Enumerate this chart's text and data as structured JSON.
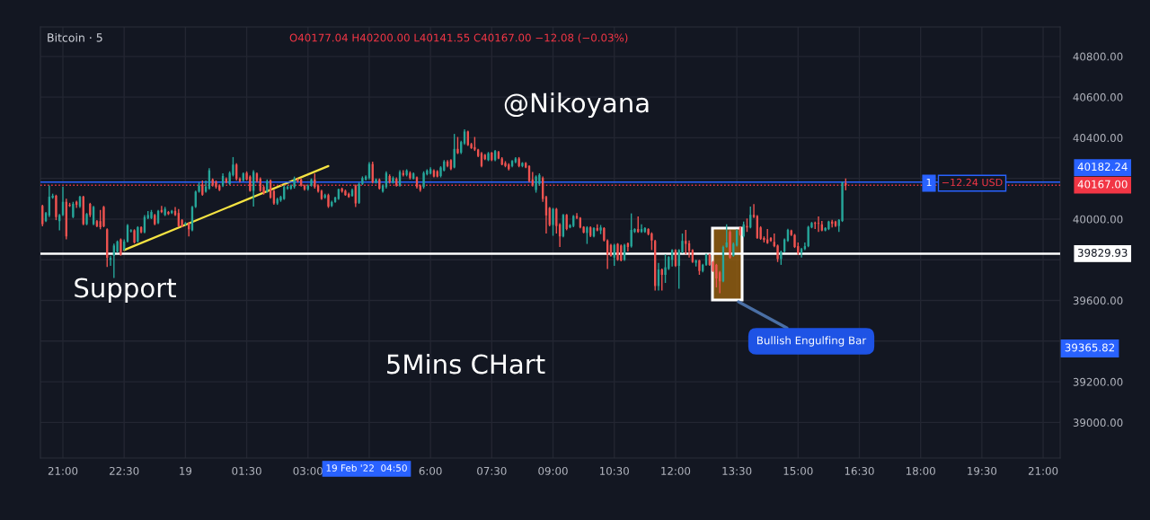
{
  "chart_data": {
    "type": "candlestick",
    "title": "Bitcoin · 5",
    "x": [
      "2022-02-18T20:30",
      "2022-02-18T20:35",
      "2022-02-18T20:40",
      "2022-02-18T20:45",
      "2022-02-18T20:50",
      "2022-02-18T20:55",
      "2022-02-18T21:00",
      "2022-02-18T21:05",
      "2022-02-18T21:10",
      "2022-02-18T21:15",
      "2022-02-18T21:20",
      "2022-02-18T21:25",
      "2022-02-18T21:30",
      "2022-02-18T21:35",
      "2022-02-18T21:40",
      "2022-02-18T21:45",
      "2022-02-18T21:50",
      "2022-02-18T21:55",
      "2022-02-18T22:00",
      "2022-02-18T22:05",
      "2022-02-18T22:10",
      "2022-02-18T22:15",
      "2022-02-18T22:20",
      "2022-02-18T22:25",
      "2022-02-18T22:30",
      "2022-02-18T22:35",
      "2022-02-18T22:40",
      "2022-02-18T22:45",
      "2022-02-18T22:50",
      "2022-02-18T22:55",
      "2022-02-18T23:00",
      "2022-02-18T23:05",
      "2022-02-18T23:10",
      "2022-02-18T23:15",
      "2022-02-18T23:20",
      "2022-02-18T23:25",
      "2022-02-18T23:30",
      "2022-02-18T23:35",
      "2022-02-18T23:40",
      "2022-02-18T23:45",
      "2022-02-18T23:50",
      "2022-02-18T23:55",
      "2022-02-19T00:00",
      "2022-02-19T00:05",
      "2022-02-19T00:10",
      "2022-02-19T00:15",
      "2022-02-19T00:20",
      "2022-02-19T00:25",
      "2022-02-19T00:30",
      "2022-02-19T00:35",
      "2022-02-19T00:40",
      "2022-02-19T00:45",
      "2022-02-19T00:50",
      "2022-02-19T00:55",
      "2022-02-19T01:00",
      "2022-02-19T01:05",
      "2022-02-19T01:10",
      "2022-02-19T01:15",
      "2022-02-19T01:20",
      "2022-02-19T01:25",
      "2022-02-19T01:30",
      "2022-02-19T01:35",
      "2022-02-19T01:40",
      "2022-02-19T01:45",
      "2022-02-19T01:50",
      "2022-02-19T01:55",
      "2022-02-19T02:00",
      "2022-02-19T02:05",
      "2022-02-19T02:10",
      "2022-02-19T02:15",
      "2022-02-19T02:20",
      "2022-02-19T02:25",
      "2022-02-19T02:30",
      "2022-02-19T02:35",
      "2022-02-19T02:40",
      "2022-02-19T02:45",
      "2022-02-19T02:50",
      "2022-02-19T02:55",
      "2022-02-19T03:00",
      "2022-02-19T03:05",
      "2022-02-19T03:10",
      "2022-02-19T03:15",
      "2022-02-19T03:20",
      "2022-02-19T03:25",
      "2022-02-19T03:30",
      "2022-02-19T03:35",
      "2022-02-19T03:40",
      "2022-02-19T03:45",
      "2022-02-19T03:50",
      "2022-02-19T03:55",
      "2022-02-19T04:00",
      "2022-02-19T04:05",
      "2022-02-19T04:10",
      "2022-02-19T04:15",
      "2022-02-19T04:20",
      "2022-02-19T04:25",
      "2022-02-19T04:30",
      "2022-02-19T04:35",
      "2022-02-19T04:40",
      "2022-02-19T04:45",
      "2022-02-19T04:50",
      "2022-02-19T04:55",
      "2022-02-19T05:00",
      "2022-02-19T05:05",
      "2022-02-19T05:10",
      "2022-02-19T05:15",
      "2022-02-19T05:20",
      "2022-02-19T05:25",
      "2022-02-19T05:30",
      "2022-02-19T05:35",
      "2022-02-19T05:40",
      "2022-02-19T05:45",
      "2022-02-19T05:50",
      "2022-02-19T05:55",
      "2022-02-19T06:00",
      "2022-02-19T06:05",
      "2022-02-19T06:10",
      "2022-02-19T06:15",
      "2022-02-19T06:20",
      "2022-02-19T06:25",
      "2022-02-19T06:30",
      "2022-02-19T06:35",
      "2022-02-19T06:40",
      "2022-02-19T06:45",
      "2022-02-19T06:50",
      "2022-02-19T06:55",
      "2022-02-19T07:00",
      "2022-02-19T07:05",
      "2022-02-19T07:10",
      "2022-02-19T07:15",
      "2022-02-19T07:20",
      "2022-02-19T07:25",
      "2022-02-19T07:30",
      "2022-02-19T07:35",
      "2022-02-19T07:40",
      "2022-02-19T07:45",
      "2022-02-19T07:50",
      "2022-02-19T07:55",
      "2022-02-19T08:00",
      "2022-02-19T08:05",
      "2022-02-19T08:10",
      "2022-02-19T08:15",
      "2022-02-19T08:20",
      "2022-02-19T08:25",
      "2022-02-19T08:30",
      "2022-02-19T08:35",
      "2022-02-19T08:40",
      "2022-02-19T08:45",
      "2022-02-19T08:50",
      "2022-02-19T08:55",
      "2022-02-19T09:00",
      "2022-02-19T09:05",
      "2022-02-19T09:10",
      "2022-02-19T09:15",
      "2022-02-19T09:20",
      "2022-02-19T09:25",
      "2022-02-19T09:30",
      "2022-02-19T09:35",
      "2022-02-19T09:40",
      "2022-02-19T09:45",
      "2022-02-19T09:50",
      "2022-02-19T09:55",
      "2022-02-19T10:00",
      "2022-02-19T10:05",
      "2022-02-19T10:10",
      "2022-02-19T10:15",
      "2022-02-19T10:20",
      "2022-02-19T10:25",
      "2022-02-19T10:30",
      "2022-02-19T10:35",
      "2022-02-19T10:40",
      "2022-02-19T10:45",
      "2022-02-19T10:50",
      "2022-02-19T10:55",
      "2022-02-19T11:00",
      "2022-02-19T11:05",
      "2022-02-19T11:10",
      "2022-02-19T11:15",
      "2022-02-19T11:20",
      "2022-02-19T11:25",
      "2022-02-19T11:30",
      "2022-02-19T11:35",
      "2022-02-19T11:40",
      "2022-02-19T11:45",
      "2022-02-19T11:50",
      "2022-02-19T11:55",
      "2022-02-19T12:00",
      "2022-02-19T12:05",
      "2022-02-19T12:10",
      "2022-02-19T12:15",
      "2022-02-19T12:20",
      "2022-02-19T12:25",
      "2022-02-19T12:30",
      "2022-02-19T12:35",
      "2022-02-19T12:40",
      "2022-02-19T12:45",
      "2022-02-19T12:50",
      "2022-02-19T12:55",
      "2022-02-19T13:00",
      "2022-02-19T13:05",
      "2022-02-19T13:10",
      "2022-02-19T13:15",
      "2022-02-19T13:20",
      "2022-02-19T13:25",
      "2022-02-19T13:30",
      "2022-02-19T13:35",
      "2022-02-19T13:40",
      "2022-02-19T13:45",
      "2022-02-19T13:50",
      "2022-02-19T13:55",
      "2022-02-19T14:00",
      "2022-02-19T14:05",
      "2022-02-19T14:10",
      "2022-02-19T14:15",
      "2022-02-19T14:20",
      "2022-02-19T14:25",
      "2022-02-19T14:30",
      "2022-02-19T14:35",
      "2022-02-19T14:40",
      "2022-02-19T14:45",
      "2022-02-19T14:50",
      "2022-02-19T14:55",
      "2022-02-19T15:00",
      "2022-02-19T15:05",
      "2022-02-19T15:10",
      "2022-02-19T15:15",
      "2022-02-19T15:20",
      "2022-02-19T15:25",
      "2022-02-19T15:30",
      "2022-02-19T15:35",
      "2022-02-19T15:40",
      "2022-02-19T15:45",
      "2022-02-19T15:50",
      "2022-02-19T15:55",
      "2022-02-19T16:00",
      "2022-02-19T16:05",
      "2022-02-19T16:10"
    ],
    "ohlc": [
      [
        40065,
        40070,
        39965,
        39975
      ],
      [
        39990,
        40035,
        39985,
        40030
      ],
      [
        40018,
        40165,
        40010,
        40110
      ],
      [
        40105,
        40125,
        40100,
        40115
      ],
      [
        40115,
        40120,
        39995,
        40010
      ],
      [
        39990,
        40025,
        39945,
        40020
      ],
      [
        40020,
        40160,
        40015,
        40085
      ],
      [
        40085,
        40100,
        39900,
        39915
      ],
      [
        40070,
        40080,
        40060,
        40065
      ],
      [
        40010,
        40085,
        40005,
        40075
      ],
      [
        40085,
        40090,
        40055,
        40070
      ],
      [
        40062,
        40115,
        40055,
        40110
      ],
      [
        40110,
        40115,
        39970,
        39975
      ],
      [
        39975,
        40030,
        39970,
        40025
      ],
      [
        40075,
        40080,
        40010,
        40020
      ],
      [
        39975,
        40065,
        39970,
        40060
      ],
      [
        39990,
        39995,
        39960,
        39965
      ],
      [
        39990,
        40045,
        39950,
        39960
      ],
      [
        40060,
        40065,
        39960,
        39965
      ],
      [
        39950,
        39955,
        39765,
        39810
      ],
      [
        39800,
        39820,
        39770,
        39810
      ],
      [
        39820,
        39880,
        39710,
        39870
      ],
      [
        39840,
        39895,
        39835,
        39890
      ],
      [
        39900,
        39905,
        39820,
        39825
      ],
      [
        39850,
        39900,
        39845,
        39890
      ],
      [
        39890,
        39975,
        39885,
        39970
      ],
      [
        39940,
        39950,
        39935,
        39945
      ],
      [
        39945,
        39950,
        39880,
        39885
      ],
      [
        39890,
        39965,
        39885,
        39960
      ],
      [
        39960,
        39965,
        39930,
        39935
      ],
      [
        39935,
        40020,
        39930,
        40010
      ],
      [
        40005,
        40040,
        40000,
        40020
      ],
      [
        40005,
        40045,
        40000,
        40035
      ],
      [
        40020,
        40025,
        39970,
        39975
      ],
      [
        39980,
        40045,
        39975,
        40040
      ],
      [
        40045,
        40065,
        40030,
        40035
      ],
      [
        40020,
        40060,
        40015,
        40050
      ],
      [
        40035,
        40040,
        40020,
        40025
      ],
      [
        40030,
        40045,
        40025,
        40040
      ],
      [
        40040,
        40060,
        40015,
        40020
      ],
      [
        40030,
        40050,
        39960,
        39965
      ],
      [
        39995,
        40000,
        39960,
        39965
      ],
      [
        39975,
        39985,
        39970,
        39980
      ],
      [
        39980,
        39985,
        39915,
        39950
      ],
      [
        39945,
        40065,
        39940,
        40060
      ],
      [
        40060,
        40140,
        40055,
        40135
      ],
      [
        40135,
        40180,
        40130,
        40165
      ],
      [
        40170,
        40190,
        40115,
        40120
      ],
      [
        40135,
        40190,
        40130,
        40160
      ],
      [
        40150,
        40250,
        40145,
        40240
      ],
      [
        40195,
        40200,
        40160,
        40165
      ],
      [
        40183,
        40190,
        40150,
        40158
      ],
      [
        40165,
        40170,
        40138,
        40143
      ],
      [
        40165,
        40225,
        40158,
        40212
      ],
      [
        40198,
        40205,
        40175,
        40180
      ],
      [
        40173,
        40235,
        40168,
        40227
      ],
      [
        40217,
        40305,
        40210,
        40268
      ],
      [
        40268,
        40275,
        40190,
        40198
      ],
      [
        40198,
        40205,
        40180,
        40187
      ],
      [
        40190,
        40230,
        40185,
        40224
      ],
      [
        40227,
        40235,
        40190,
        40195
      ],
      [
        40209,
        40215,
        40135,
        40139
      ],
      [
        40139,
        40240,
        40062,
        40232
      ],
      [
        40224,
        40230,
        40180,
        40187
      ],
      [
        40198,
        40205,
        40135,
        40139
      ],
      [
        40158,
        40165,
        40120,
        40128
      ],
      [
        40136,
        40195,
        40130,
        40187
      ],
      [
        40190,
        40195,
        40100,
        40106
      ],
      [
        40139,
        40145,
        40070,
        40077
      ],
      [
        40077,
        40105,
        40070,
        40099
      ],
      [
        40092,
        40115,
        40085,
        40109
      ],
      [
        40099,
        40165,
        40095,
        40158
      ],
      [
        40150,
        40165,
        40145,
        40158
      ],
      [
        40150,
        40170,
        40145,
        40165
      ],
      [
        40158,
        40209,
        40150,
        40198
      ],
      [
        40195,
        40200,
        40180,
        40187
      ],
      [
        40195,
        40200,
        40160,
        40165
      ],
      [
        40165,
        40170,
        40140,
        40147
      ],
      [
        40147,
        40170,
        40140,
        40165
      ],
      [
        40165,
        40200,
        40160,
        40195
      ],
      [
        40195,
        40224,
        40150,
        40158
      ],
      [
        40165,
        40170,
        40130,
        40136
      ],
      [
        40139,
        40145,
        40095,
        40099
      ],
      [
        40106,
        40125,
        40100,
        40118
      ],
      [
        40118,
        40125,
        40055,
        40062
      ],
      [
        40065,
        40090,
        40060,
        40084
      ],
      [
        40084,
        40110,
        40080,
        40106
      ],
      [
        40099,
        40150,
        40095,
        40147
      ],
      [
        40150,
        40155,
        40130,
        40136
      ],
      [
        40139,
        40145,
        40115,
        40118
      ],
      [
        40124,
        40130,
        40105,
        40109
      ],
      [
        40114,
        40150,
        40110,
        40143
      ],
      [
        40165,
        40170,
        40059,
        40077
      ],
      [
        40080,
        40180,
        40075,
        40173
      ],
      [
        40173,
        40210,
        40168,
        40202
      ],
      [
        40195,
        40215,
        40190,
        40209
      ],
      [
        40202,
        40280,
        40195,
        40271
      ],
      [
        40271,
        40283,
        40175,
        40180
      ],
      [
        40180,
        40200,
        40175,
        40195
      ],
      [
        40195,
        40200,
        40145,
        40150
      ],
      [
        40136,
        40170,
        40130,
        40165
      ],
      [
        40158,
        40235,
        40150,
        40227
      ],
      [
        40212,
        40220,
        40175,
        40180
      ],
      [
        40180,
        40210,
        40175,
        40202
      ],
      [
        40198,
        40205,
        40160,
        40165
      ],
      [
        40165,
        40240,
        40160,
        40232
      ],
      [
        40227,
        40240,
        40210,
        40217
      ],
      [
        40217,
        40245,
        40210,
        40239
      ],
      [
        40227,
        40235,
        40195,
        40202
      ],
      [
        40198,
        40230,
        40195,
        40224
      ],
      [
        40206,
        40210,
        40150,
        40158
      ],
      [
        40165,
        40170,
        40135,
        40143
      ],
      [
        40158,
        40235,
        40150,
        40227
      ],
      [
        40221,
        40245,
        40215,
        40239
      ],
      [
        40224,
        40255,
        40220,
        40246
      ],
      [
        40239,
        40245,
        40205,
        40209
      ],
      [
        40235,
        40240,
        40205,
        40209
      ],
      [
        40212,
        40260,
        40205,
        40254
      ],
      [
        40239,
        40290,
        40235,
        40283
      ],
      [
        40283,
        40290,
        40255,
        40261
      ],
      [
        40290,
        40295,
        40240,
        40246
      ],
      [
        40254,
        40419,
        40250,
        40345
      ],
      [
        40345,
        40404,
        40320,
        40324
      ],
      [
        40327,
        40385,
        40320,
        40379
      ],
      [
        40372,
        40442,
        40365,
        40431
      ],
      [
        40431,
        40435,
        40360,
        40364
      ],
      [
        40369,
        40375,
        40345,
        40349
      ],
      [
        40354,
        40404,
        40335,
        40342
      ],
      [
        40342,
        40345,
        40305,
        40310
      ],
      [
        40324,
        40330,
        40255,
        40261
      ],
      [
        40316,
        40320,
        40290,
        40295
      ],
      [
        40290,
        40330,
        40285,
        40324
      ],
      [
        40327,
        40330,
        40285,
        40290
      ],
      [
        40290,
        40340,
        40285,
        40335
      ],
      [
        40330,
        40335,
        40295,
        40298
      ],
      [
        40298,
        40305,
        40265,
        40268
      ],
      [
        40276,
        40285,
        40255,
        40261
      ],
      [
        40268,
        40275,
        40239,
        40246
      ],
      [
        40261,
        40290,
        40255,
        40286
      ],
      [
        40280,
        40305,
        40275,
        40298
      ],
      [
        40298,
        40305,
        40255,
        40261
      ],
      [
        40261,
        40280,
        40255,
        40276
      ],
      [
        40276,
        40280,
        40250,
        40254
      ],
      [
        40261,
        40265,
        40180,
        40187
      ],
      [
        40195,
        40232,
        40160,
        40165
      ],
      [
        40143,
        40215,
        40130,
        40209
      ],
      [
        40173,
        40225,
        40165,
        40217
      ],
      [
        40202,
        40210,
        40085,
        40099
      ],
      [
        40109,
        40115,
        39929,
        40018
      ],
      [
        40055,
        40060,
        39965,
        39971
      ],
      [
        39971,
        40055,
        39918,
        40050
      ],
      [
        40050,
        40055,
        39929,
        39966
      ],
      [
        39974,
        39980,
        39863,
        39915
      ],
      [
        39915,
        40025,
        39910,
        40021
      ],
      [
        40021,
        40025,
        39945,
        39951
      ],
      [
        39959,
        39975,
        39955,
        39971
      ],
      [
        39966,
        40020,
        39960,
        40015
      ],
      [
        40015,
        40030,
        40000,
        40006
      ],
      [
        40006,
        40010,
        39955,
        39959
      ],
      [
        39962,
        39965,
        39930,
        39934
      ],
      [
        39932,
        39965,
        39878,
        39959
      ],
      [
        39959,
        39965,
        39912,
        39918
      ],
      [
        39915,
        39960,
        39910,
        39956
      ],
      [
        39956,
        39974,
        39940,
        39944
      ],
      [
        39944,
        39971,
        39926,
        39959
      ],
      [
        39956,
        39960,
        39890,
        39895
      ],
      [
        39895,
        39900,
        39755,
        39826
      ],
      [
        39873,
        39878,
        39815,
        39819
      ],
      [
        39811,
        39878,
        39770,
        39873
      ],
      [
        39878,
        39882,
        39795,
        39800
      ],
      [
        39870,
        39875,
        39792,
        39797
      ],
      [
        39800,
        39878,
        39795,
        39873
      ],
      [
        39881,
        39885,
        39841,
        39863
      ],
      [
        39866,
        40028,
        39860,
        39947
      ],
      [
        39937,
        39955,
        39932,
        39951
      ],
      [
        39951,
        40013,
        39932,
        39937
      ],
      [
        39937,
        39974,
        39932,
        39951
      ],
      [
        39937,
        39960,
        39932,
        39956
      ],
      [
        39951,
        39955,
        39920,
        39926
      ],
      [
        39929,
        39935,
        39848,
        39895
      ],
      [
        39893,
        39898,
        39649,
        39671
      ],
      [
        39671,
        39785,
        39649,
        39752
      ],
      [
        39752,
        39757,
        39649,
        39726
      ],
      [
        39726,
        39826,
        39686,
        39763
      ],
      [
        39755,
        39818,
        39750,
        39814
      ],
      [
        39800,
        39852,
        39767,
        39848
      ],
      [
        39848,
        39852,
        39765,
        39770
      ],
      [
        39770,
        39852,
        39657,
        39848
      ],
      [
        39837,
        39929,
        39832,
        39893
      ],
      [
        39893,
        39947,
        39826,
        39878
      ],
      [
        39881,
        39895,
        39811,
        39844
      ],
      [
        39848,
        39852,
        39785,
        39789
      ],
      [
        39785,
        39800,
        39767,
        39797
      ],
      [
        39797,
        39800,
        39726,
        39745
      ],
      [
        39745,
        39780,
        39738,
        39775
      ],
      [
        39775,
        39830,
        39770,
        39826
      ],
      [
        39826,
        39830,
        39770,
        39775
      ],
      [
        39789,
        39795,
        39740,
        39745
      ],
      [
        39775,
        39780,
        39664,
        39708
      ],
      [
        39738,
        39745,
        39635,
        39694
      ],
      [
        39694,
        39870,
        39690,
        39863
      ],
      [
        39863,
        39974,
        39860,
        39885
      ],
      [
        39937,
        39945,
        39805,
        39811
      ],
      [
        39819,
        39885,
        39815,
        39878
      ],
      [
        39870,
        39950,
        39865,
        39944
      ],
      [
        39959,
        39965,
        39918,
        39922
      ],
      [
        39915,
        39988,
        39910,
        39974
      ],
      [
        39966,
        40003,
        39937,
        39959
      ],
      [
        39959,
        40062,
        39955,
        40021
      ],
      [
        40021,
        40074,
        40005,
        40010
      ],
      [
        40015,
        40020,
        39903,
        39907
      ],
      [
        39959,
        39965,
        39898,
        39903
      ],
      [
        39907,
        39915,
        39885,
        39897
      ],
      [
        39900,
        39951,
        39878,
        39882
      ],
      [
        39907,
        39912,
        39888,
        39893
      ],
      [
        39888,
        39929,
        39862,
        39867
      ],
      [
        39870,
        39875,
        39789,
        39804
      ],
      [
        39804,
        39845,
        39775,
        39841
      ],
      [
        39841,
        39905,
        39836,
        39900
      ],
      [
        39893,
        39952,
        39888,
        39947
      ],
      [
        39944,
        39948,
        39917,
        39922
      ],
      [
        39922,
        39927,
        39858,
        39863
      ],
      [
        39867,
        39885,
        39823,
        39834
      ],
      [
        39834,
        39858,
        39811,
        39853
      ],
      [
        39853,
        39885,
        39848,
        39867
      ],
      [
        39867,
        39967,
        39862,
        39962
      ],
      [
        39959,
        39986,
        39955,
        39981
      ],
      [
        39981,
        39988,
        39951,
        39977
      ],
      [
        39981,
        40013,
        39937,
        39977
      ],
      [
        39974,
        39991,
        39940,
        39944
      ],
      [
        39944,
        39960,
        39940,
        39956
      ],
      [
        39951,
        39992,
        39946,
        39988
      ],
      [
        39988,
        39996,
        39959,
        39977
      ],
      [
        39988,
        39992,
        39961,
        39966
      ],
      [
        39966,
        40000,
        39937,
        39996
      ],
      [
        39991,
        40185,
        39986,
        40180
      ],
      [
        40177.04,
        40200.0,
        40141.55,
        40167.0
      ]
    ],
    "colors": [
      "#ef5350",
      "#26a69a",
      "#26a69a",
      "#26a69a",
      "#ef5350",
      "#26a69a",
      "#26a69a",
      "#ef5350",
      "#ef5350",
      "#26a69a",
      "#ef5350",
      "#26a69a",
      "#ef5350",
      "#26a69a",
      "#ef5350",
      "#26a69a",
      "#ef5350",
      "#ef5350",
      "#ef5350",
      "#ef5350",
      "#26a69a",
      "#26a69a",
      "#26a69a",
      "#ef5350",
      "#26a69a",
      "#26a69a",
      "#26a69a",
      "#ef5350",
      "#26a69a",
      "#ef5350",
      "#26a69a",
      "#26a69a",
      "#26a69a",
      "#ef5350",
      "#26a69a",
      "#ef5350",
      "#26a69a",
      "#ef5350",
      "#26a69a",
      "#ef5350",
      "#ef5350",
      "#ef5350",
      "#26a69a",
      "#ef5350",
      "#26a69a",
      "#26a69a",
      "#26a69a",
      "#ef5350",
      "#26a69a",
      "#26a69a",
      "#ef5350",
      "#ef5350",
      "#ef5350",
      "#26a69a",
      "#ef5350",
      "#26a69a",
      "#26a69a",
      "#ef5350",
      "#ef5350",
      "#26a69a",
      "#ef5350",
      "#ef5350",
      "#26a69a",
      "#ef5350",
      "#ef5350",
      "#ef5350",
      "#26a69a",
      "#ef5350",
      "#ef5350",
      "#26a69a",
      "#26a69a",
      "#26a69a",
      "#26a69a",
      "#26a69a",
      "#26a69a",
      "#ef5350",
      "#ef5350",
      "#ef5350",
      "#26a69a",
      "#26a69a",
      "#ef5350",
      "#ef5350",
      "#ef5350",
      "#26a69a",
      "#ef5350",
      "#26a69a",
      "#26a69a",
      "#26a69a",
      "#ef5350",
      "#ef5350",
      "#ef5350",
      "#26a69a",
      "#ef5350",
      "#26a69a",
      "#26a69a",
      "#26a69a",
      "#26a69a",
      "#ef5350",
      "#26a69a",
      "#ef5350",
      "#26a69a",
      "#26a69a",
      "#ef5350",
      "#26a69a",
      "#ef5350",
      "#26a69a",
      "#ef5350",
      "#26a69a",
      "#ef5350",
      "#26a69a",
      "#ef5350",
      "#ef5350",
      "#26a69a",
      "#26a69a",
      "#26a69a",
      "#ef5350",
      "#ef5350",
      "#26a69a",
      "#26a69a",
      "#ef5350",
      "#ef5350",
      "#26a69a",
      "#ef5350",
      "#26a69a",
      "#26a69a",
      "#ef5350",
      "#ef5350",
      "#ef5350",
      "#ef5350",
      "#ef5350",
      "#ef5350",
      "#26a69a",
      "#ef5350",
      "#26a69a",
      "#ef5350",
      "#ef5350",
      "#ef5350",
      "#ef5350",
      "#26a69a",
      "#26a69a",
      "#ef5350",
      "#26a69a",
      "#ef5350",
      "#ef5350",
      "#ef5350",
      "#26a69a",
      "#26a69a",
      "#ef5350",
      "#ef5350",
      "#ef5350",
      "#26a69a",
      "#ef5350",
      "#ef5350",
      "#26a69a",
      "#ef5350",
      "#26a69a",
      "#26a69a",
      "#ef5350",
      "#ef5350",
      "#ef5350",
      "#26a69a",
      "#ef5350",
      "#26a69a",
      "#ef5350",
      "#26a69a",
      "#ef5350",
      "#ef5350",
      "#ef5350",
      "#26a69a",
      "#ef5350",
      "#ef5350",
      "#26a69a",
      "#ef5350",
      "#26a69a",
      "#26a69a",
      "#ef5350",
      "#26a69a",
      "#26a69a",
      "#ef5350",
      "#ef5350",
      "#ef5350",
      "#26a69a",
      "#ef5350",
      "#26a69a",
      "#26a69a",
      "#26a69a",
      "#ef5350",
      "#26a69a",
      "#26a69a",
      "#ef5350",
      "#ef5350",
      "#ef5350",
      "#26a69a",
      "#ef5350",
      "#26a69a",
      "#26a69a",
      "#ef5350",
      "#ef5350",
      "#ef5350",
      "#ef5350",
      "#26a69a",
      "#26a69a",
      "#ef5350",
      "#26a69a",
      "#26a69a",
      "#ef5350",
      "#26a69a",
      "#ef5350",
      "#26a69a",
      "#ef5350",
      "#ef5350",
      "#ef5350",
      "#ef5350",
      "#ef5350",
      "#ef5350",
      "#ef5350",
      "#ef5350",
      "#26a69a",
      "#26a69a",
      "#26a69a",
      "#ef5350",
      "#ef5350",
      "#ef5350",
      "#26a69a",
      "#26a69a",
      "#26a69a",
      "#26a69a",
      "#ef5350",
      "#ef5350",
      "#ef5350",
      "#26a69a",
      "#26a69a",
      "#ef5350",
      "#ef5350",
      "#26a69a",
      "#26a69a",
      "#ef5350"
    ],
    "series": [
      {
        "type": "line",
        "color": "#f5e342",
        "x": [
          "2022-02-18T22:30",
          "2022-02-19T03:30"
        ],
        "values": [
          39848,
          40261
        ]
      }
    ],
    "xlim": [
      "2022-02-18T20:27",
      "2022-02-19T21:25"
    ],
    "xticks": [
      {
        "value": "2022-02-18T21:00",
        "label": "21:00"
      },
      {
        "value": "2022-02-18T22:30",
        "label": "22:30"
      },
      {
        "value": "2022-02-19T00:00",
        "label": "19"
      },
      {
        "value": "2022-02-19T01:30",
        "label": "01:30"
      },
      {
        "value": "2022-02-19T03:00",
        "label": "03:00"
      },
      {
        "value": "2022-02-19T04:30",
        "label": null
      },
      {
        "value": "2022-02-19T06:00",
        "label": "6:00"
      },
      {
        "value": "2022-02-19T07:30",
        "label": "07:30"
      },
      {
        "value": "2022-02-19T09:00",
        "label": "09:00"
      },
      {
        "value": "2022-02-19T10:30",
        "label": "10:30"
      },
      {
        "value": "2022-02-19T12:00",
        "label": "12:00"
      },
      {
        "value": "2022-02-19T13:30",
        "label": "13:30"
      },
      {
        "value": "2022-02-19T15:00",
        "label": "15:00"
      },
      {
        "value": "2022-02-19T16:30",
        "label": "16:30"
      },
      {
        "value": "2022-02-19T18:00",
        "label": "18:00"
      },
      {
        "value": "2022-02-19T19:30",
        "label": "19:30"
      },
      {
        "value": "2022-02-19T21:00",
        "label": "21:00"
      }
    ],
    "ylim": [
      38825,
      40945
    ],
    "yticks": [
      {
        "value": 39000,
        "label": "39000.00"
      },
      {
        "value": 39200,
        "label": "39200.00"
      },
      {
        "value": 39400,
        "label": null
      },
      {
        "value": 39600,
        "label": "39600.00"
      },
      {
        "value": 39800,
        "label": null
      },
      {
        "value": 40000,
        "label": "40000.00"
      },
      {
        "value": 40200,
        "label": null
      },
      {
        "value": 40400,
        "label": "40400.00"
      },
      {
        "value": 40600,
        "label": "40600.00"
      },
      {
        "value": 40800,
        "label": "40800.00"
      }
    ],
    "grid": true,
    "ref_lines": [
      {
        "axis": "y",
        "value": 40182.24,
        "label": "40182.24",
        "color": "#2962ff",
        "line_style": "solid"
      },
      {
        "axis": "y",
        "value": 40167.0,
        "label": "40167.00",
        "color": "#f23645",
        "line_style": "dotted"
      },
      {
        "axis": "y",
        "value": 39829.93,
        "label": "39829.93",
        "color": "#ffffff",
        "line_style": "solid"
      }
    ],
    "annotations": [
      "O40177.04 H40200.00 L40141.55 C40167.00 −12.08 (−0.03%)",
      "@Nikoyana",
      "Support",
      "5Mins CHart",
      "Bullish Engulfing Bar",
      "1",
      "−12.24 USD",
      "39365.82",
      "19 Feb '22  04:50"
    ]
  }
}
